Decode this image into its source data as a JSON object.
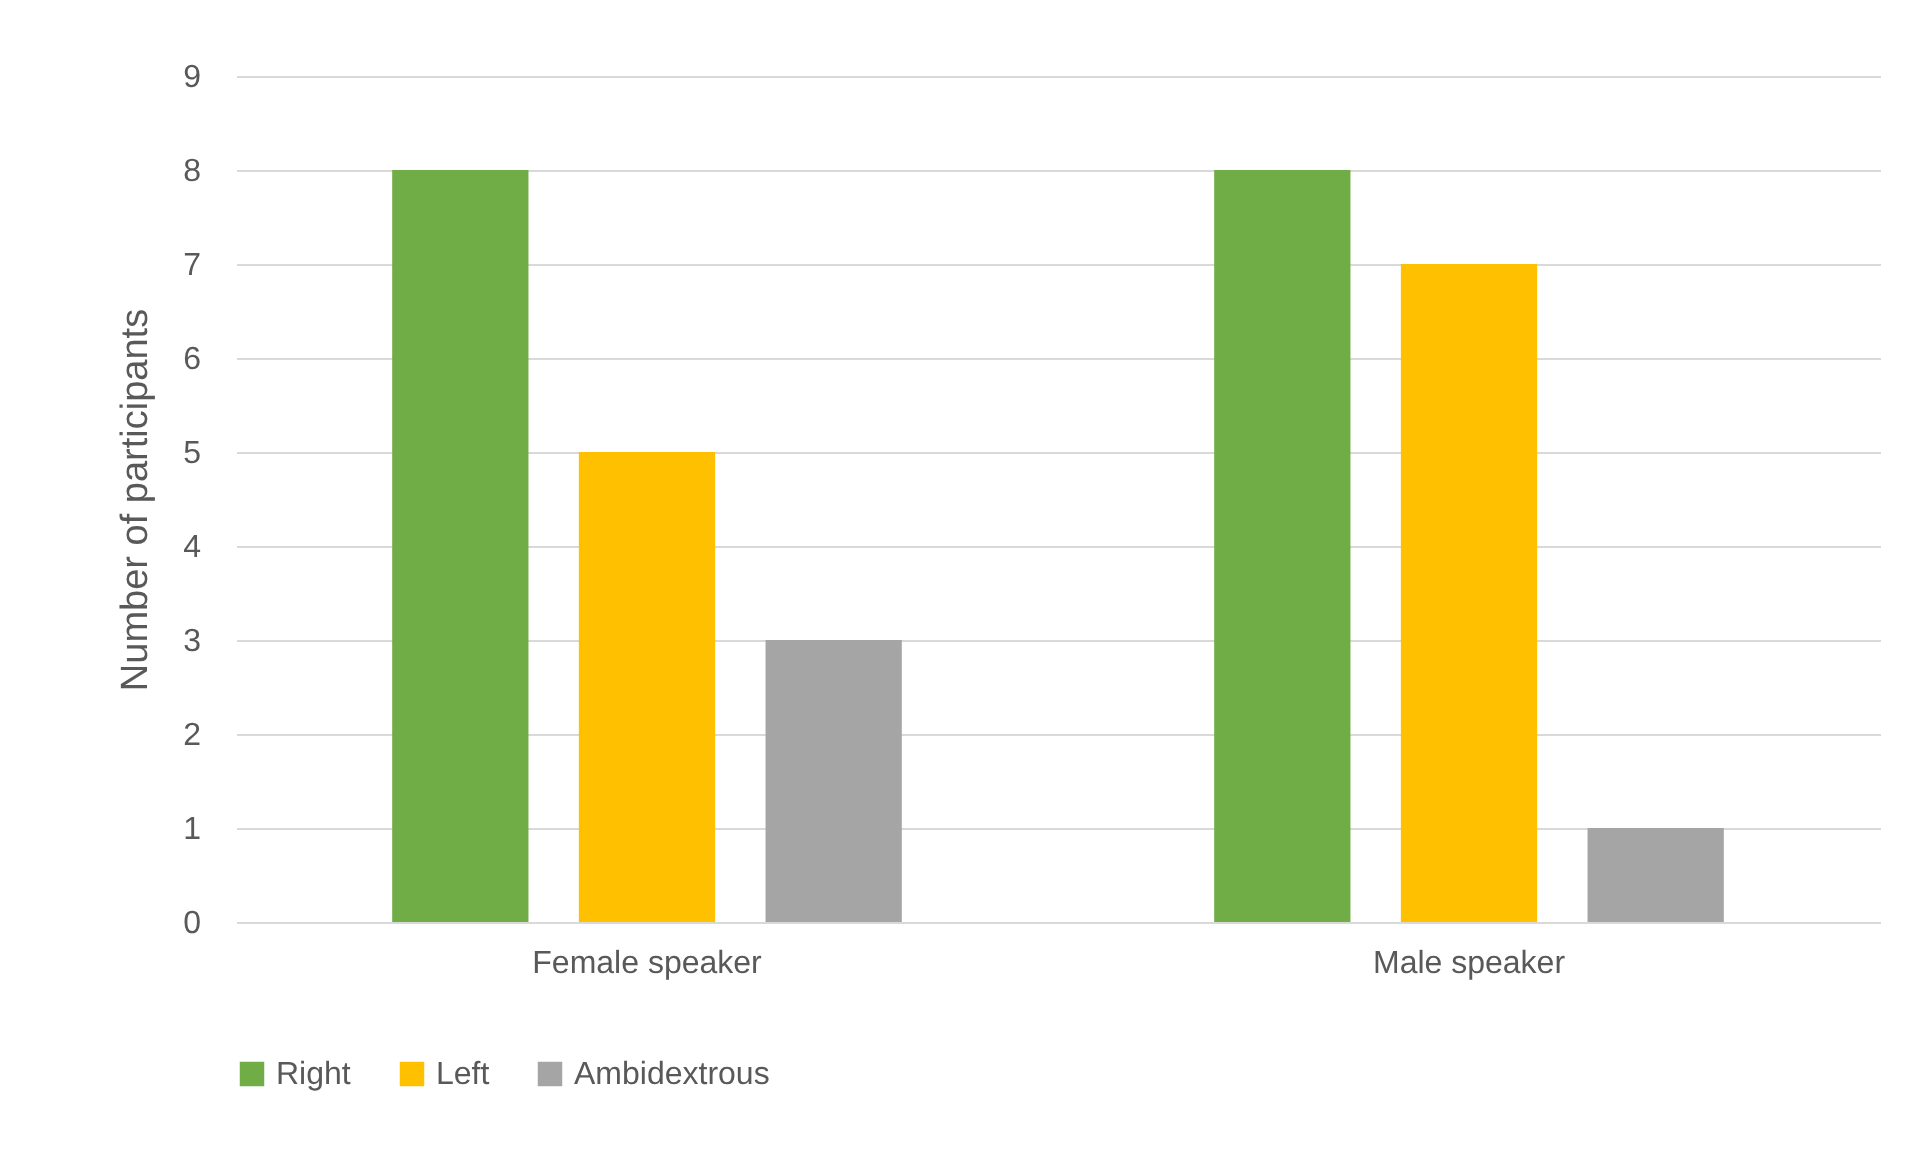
{
  "chart_data": {
    "type": "bar",
    "ylabel": "Number of participants",
    "categories": [
      "Female speaker",
      "Male speaker"
    ],
    "series": [
      {
        "name": "Right",
        "color": "#70ad47",
        "values": [
          8,
          8
        ]
      },
      {
        "name": "Left",
        "color": "#ffc000",
        "values": [
          5,
          7
        ]
      },
      {
        "name": "Ambidextrous",
        "color": "#a5a5a5",
        "values": [
          3,
          1
        ]
      }
    ],
    "ylim": [
      0,
      9
    ],
    "yticks": [
      0,
      1,
      2,
      3,
      4,
      5,
      6,
      7,
      8,
      9
    ],
    "grid": "y",
    "legend": "bottom"
  }
}
